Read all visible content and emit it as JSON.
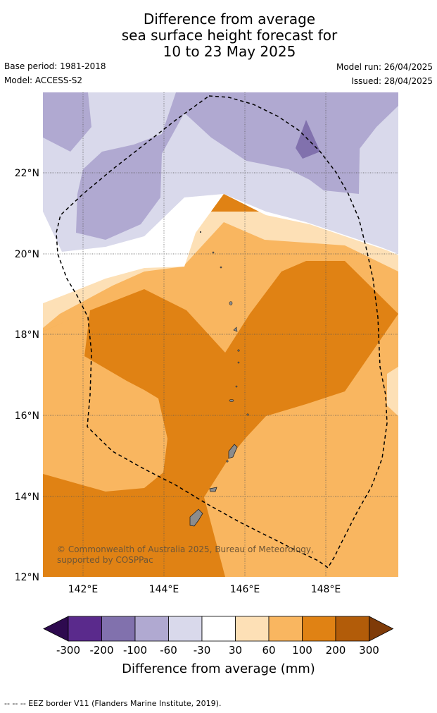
{
  "title": {
    "line1": "Difference from average",
    "line2": "sea surface height forecast for",
    "line3": "10 to 23 May 2025"
  },
  "meta": {
    "base_period": "Base period: 1981-2018",
    "model": "Model: ACCESS-S2",
    "model_run": "Model run: 26/04/2025",
    "issued": "Issued: 28/04/2025"
  },
  "map": {
    "lat_labels": [
      "22°N",
      "20°N",
      "18°N",
      "16°N",
      "14°N",
      "12°N"
    ],
    "lon_labels": [
      "142°E",
      "144°E",
      "146°E",
      "148°E"
    ],
    "credit": "© Commonwealth of Australia 2025, Bureau of Meteorology, supported by COSPPac"
  },
  "colorbar": {
    "title": "Difference from average (mm)",
    "tick_labels": [
      "-300",
      "-200",
      "-100",
      "-60",
      "-30",
      "30",
      "60",
      "100",
      "200",
      "300"
    ],
    "colors": [
      "#2e0a4f",
      "#5a2a8c",
      "#8171ad",
      "#b0a9d1",
      "#d9d9eb",
      "#ffffff",
      "#fde0b6",
      "#f9b660",
      "#e08214",
      "#b25c09",
      "#7f3b08"
    ]
  },
  "footer": "--  --  -- EEZ border V11 (Flanders Marine Institute, 2019)."
}
